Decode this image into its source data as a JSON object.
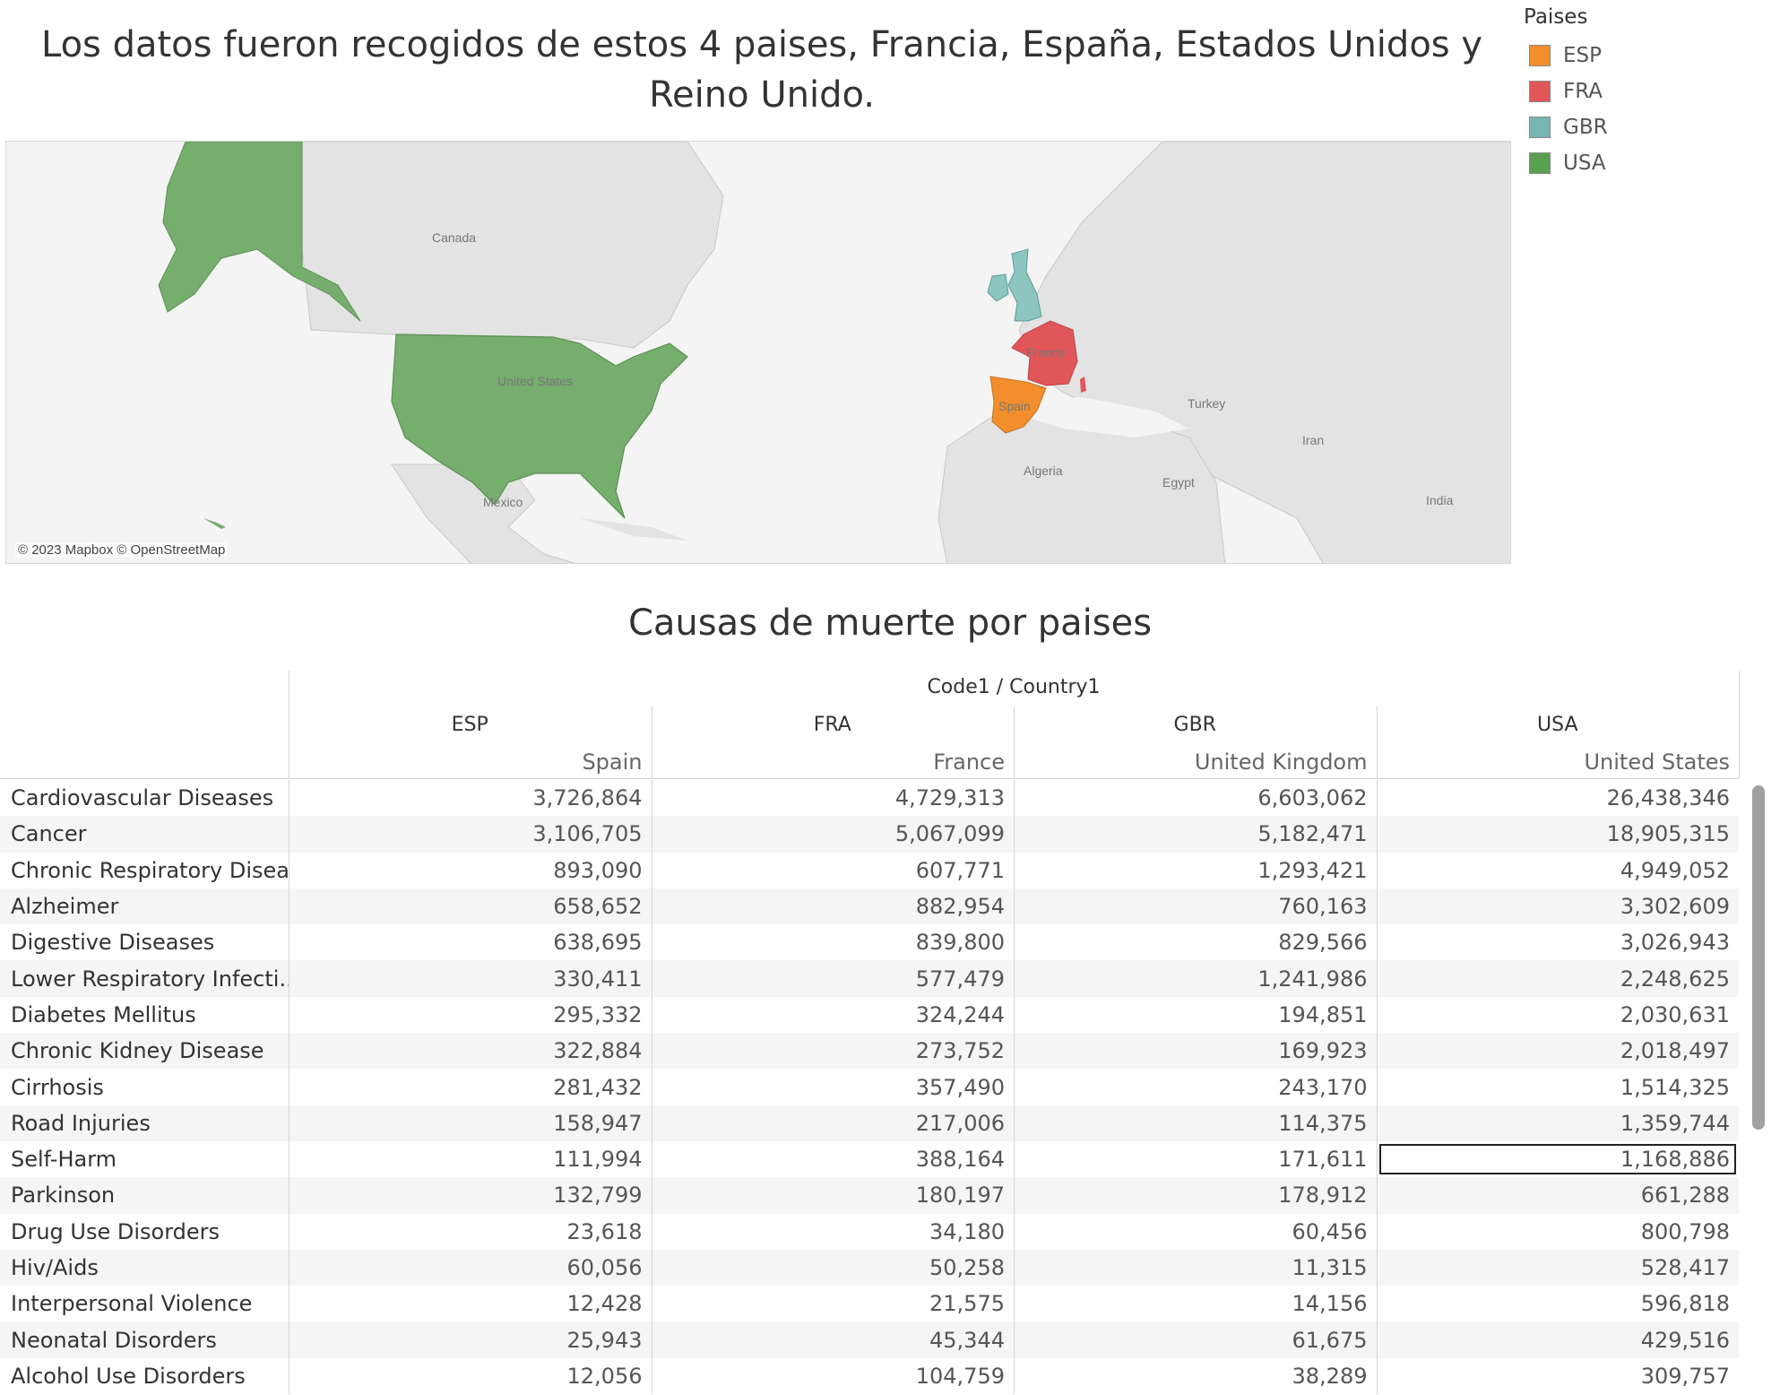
{
  "dashboard": {
    "title": "Los datos fueron recogidos de estos 4 paises, Francia, España, Estados Unidos y Reino Unido."
  },
  "legend": {
    "title": "Paises",
    "items": [
      {
        "label": "ESP",
        "color": "#F28E2B"
      },
      {
        "label": "FRA",
        "color": "#E15759"
      },
      {
        "label": "GBR",
        "color": "#76B7B2"
      },
      {
        "label": "USA",
        "color": "#59A14F"
      }
    ]
  },
  "map": {
    "labels": {
      "canada": "Canada",
      "united_states": "United States",
      "mexico": "Mexico",
      "france": "France",
      "spain": "Spain",
      "algeria": "Algeria",
      "egypt": "Egypt",
      "turkey": "Turkey",
      "iran": "Iran",
      "india": "India"
    },
    "attribution": "© 2023 Mapbox © OpenStreetMap"
  },
  "table": {
    "title": "Causas de muerte por paises",
    "group_header": "Code1 / Country1",
    "columns": [
      {
        "code": "ESP",
        "country": "Spain"
      },
      {
        "code": "FRA",
        "country": "France"
      },
      {
        "code": "GBR",
        "country": "United Kingdom"
      },
      {
        "code": "USA",
        "country": "United States"
      }
    ],
    "rows": [
      {
        "cause": "Cardiovascular Diseases",
        "values": [
          "3,726,864",
          "4,729,313",
          "6,603,062",
          "26,438,346"
        ]
      },
      {
        "cause": "Cancer",
        "values": [
          "3,106,705",
          "5,067,099",
          "5,182,471",
          "18,905,315"
        ]
      },
      {
        "cause": "Chronic Respiratory Disea..",
        "values": [
          "893,090",
          "607,771",
          "1,293,421",
          "4,949,052"
        ]
      },
      {
        "cause": "Alzheimer",
        "values": [
          "658,652",
          "882,954",
          "760,163",
          "3,302,609"
        ]
      },
      {
        "cause": "Digestive Diseases",
        "values": [
          "638,695",
          "839,800",
          "829,566",
          "3,026,943"
        ]
      },
      {
        "cause": "Lower Respiratory Infecti..",
        "values": [
          "330,411",
          "577,479",
          "1,241,986",
          "2,248,625"
        ]
      },
      {
        "cause": "Diabetes Mellitus",
        "values": [
          "295,332",
          "324,244",
          "194,851",
          "2,030,631"
        ]
      },
      {
        "cause": "Chronic Kidney Disease",
        "values": [
          "322,884",
          "273,752",
          "169,923",
          "2,018,497"
        ]
      },
      {
        "cause": "Cirrhosis",
        "values": [
          "281,432",
          "357,490",
          "243,170",
          "1,514,325"
        ]
      },
      {
        "cause": "Road Injuries",
        "values": [
          "158,947",
          "217,006",
          "114,375",
          "1,359,744"
        ]
      },
      {
        "cause": "Self-Harm",
        "values": [
          "111,994",
          "388,164",
          "171,611",
          "1,168,886"
        ]
      },
      {
        "cause": "Parkinson",
        "values": [
          "132,799",
          "180,197",
          "178,912",
          "661,288"
        ]
      },
      {
        "cause": "Drug Use Disorders",
        "values": [
          "23,618",
          "34,180",
          "60,456",
          "800,798"
        ]
      },
      {
        "cause": "Hiv/Aids",
        "values": [
          "60,056",
          "50,258",
          "11,315",
          "528,417"
        ]
      },
      {
        "cause": "Interpersonal Violence",
        "values": [
          "12,428",
          "21,575",
          "14,156",
          "596,818"
        ]
      },
      {
        "cause": "Neonatal Disorders",
        "values": [
          "25,943",
          "45,344",
          "61,675",
          "429,516"
        ]
      },
      {
        "cause": "Alcohol Use Disorders",
        "values": [
          "12,056",
          "104,759",
          "38,289",
          "309,757"
        ]
      }
    ],
    "selected_cell": {
      "row": 10,
      "col": 3
    }
  }
}
